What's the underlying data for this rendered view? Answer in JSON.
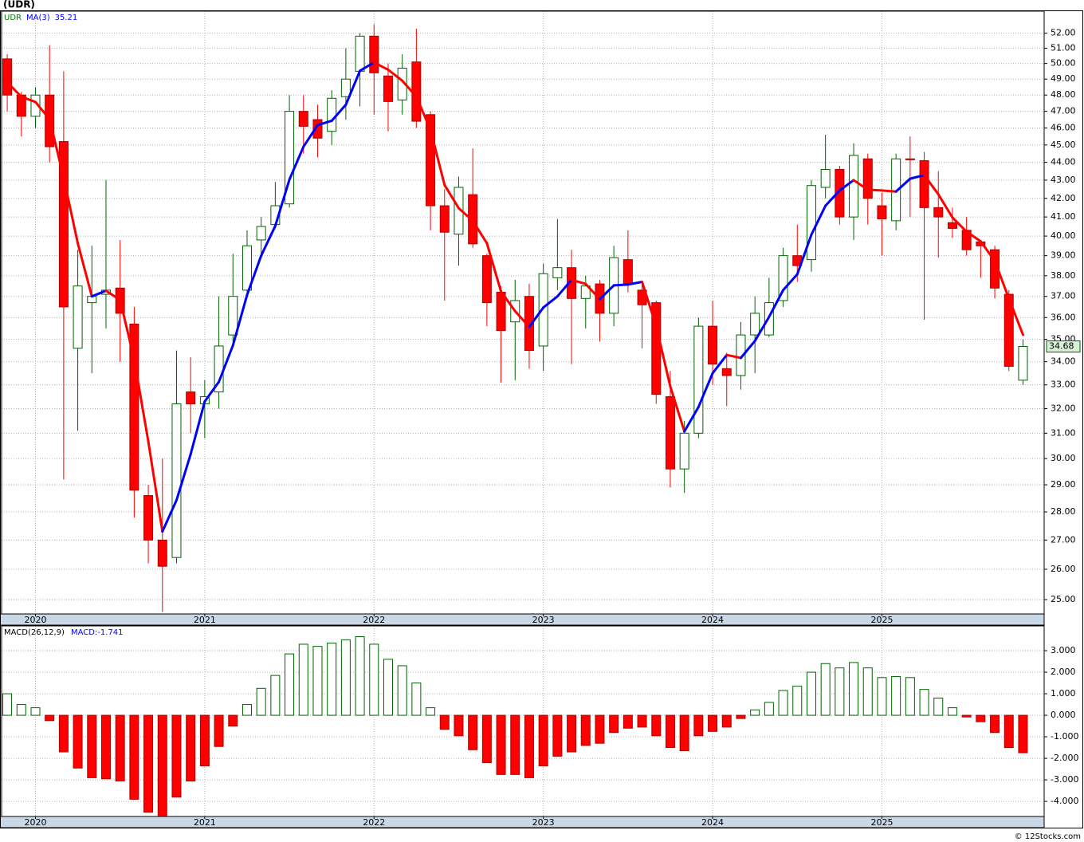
{
  "chart_data": [
    {
      "type": "candlestick",
      "title": "(UDR)",
      "ticker": "UDR",
      "ticker_color": "#008000",
      "log_scale": true,
      "grid": true,
      "up_color": "#006400",
      "down_color": "#ff0000",
      "open": [
        50.3,
        48.0,
        46.7,
        48.0,
        45.2,
        34.6,
        36.7,
        37.1,
        37.4,
        35.7,
        28.6,
        27.0,
        26.4,
        32.7,
        32.2,
        32.7,
        35.2,
        37.3,
        39.8,
        40.6,
        41.7,
        47.0,
        46.5,
        45.8,
        47.9,
        49.5,
        51.8,
        49.2,
        47.7,
        50.1,
        46.8,
        41.6,
        40.1,
        42.2,
        39.0,
        37.2,
        35.8,
        37.0,
        34.7,
        37.9,
        38.4,
        36.9,
        37.6,
        36.2,
        38.8,
        37.3,
        36.7,
        32.5,
        29.6,
        31.0,
        35.6,
        33.7,
        33.4,
        35.2,
        35.2,
        36.8,
        39.0,
        38.8,
        42.6,
        43.6,
        41.0,
        44.2,
        41.6,
        40.8,
        44.2,
        44.1,
        41.5,
        40.7,
        40.3,
        39.7,
        39.3,
        37.1,
        33.2
      ],
      "high": [
        50.6,
        48.2,
        48.5,
        51.2,
        49.5,
        39.3,
        39.5,
        43.0,
        39.8,
        36.5,
        29.0,
        30.0,
        34.5,
        34.2,
        33.2,
        37.0,
        39.1,
        40.3,
        41.0,
        42.9,
        48.0,
        48.0,
        47.4,
        48.3,
        51.0,
        52.0,
        52.6,
        50.0,
        50.6,
        52.3,
        47.0,
        42.5,
        43.2,
        44.8,
        39.1,
        37.5,
        37.8,
        37.6,
        38.6,
        40.9,
        39.3,
        38.0,
        37.8,
        39.5,
        40.3,
        37.6,
        36.8,
        33.6,
        31.5,
        36.0,
        36.8,
        34.4,
        35.8,
        37.0,
        37.9,
        39.4,
        40.6,
        43.0,
        45.6,
        43.8,
        45.1,
        44.5,
        42.3,
        44.5,
        45.5,
        44.6,
        43.5,
        41.5,
        41.0,
        39.8,
        39.5,
        37.3,
        35.0
      ],
      "low": [
        47.0,
        45.5,
        46.0,
        44.0,
        29.2,
        31.1,
        33.5,
        35.5,
        34.0,
        27.8,
        26.2,
        24.6,
        26.2,
        31.0,
        30.8,
        32.0,
        34.7,
        36.9,
        39.0,
        40.4,
        41.5,
        44.5,
        44.3,
        45.0,
        46.5,
        47.3,
        46.8,
        45.8,
        46.8,
        46.0,
        40.3,
        36.8,
        38.5,
        39.4,
        35.6,
        33.1,
        33.2,
        33.7,
        33.6,
        37.3,
        33.9,
        35.5,
        34.9,
        35.6,
        37.2,
        34.6,
        32.2,
        28.9,
        28.7,
        30.8,
        33.0,
        32.1,
        32.8,
        33.5,
        35.1,
        36.5,
        37.7,
        38.2,
        42.0,
        40.6,
        39.8,
        40.6,
        39.0,
        40.3,
        41.0,
        35.9,
        38.9,
        39.9,
        39.0,
        37.9,
        36.9,
        33.6,
        33.0
      ],
      "close": [
        48.0,
        46.7,
        48.0,
        44.9,
        36.5,
        37.5,
        37.0,
        37.3,
        36.2,
        28.8,
        27.0,
        26.1,
        32.2,
        32.2,
        32.5,
        34.7,
        37.0,
        39.5,
        40.5,
        41.6,
        47.0,
        46.1,
        45.4,
        47.8,
        49.0,
        51.8,
        49.4,
        47.6,
        49.7,
        46.4,
        41.6,
        40.2,
        42.6,
        39.6,
        36.7,
        35.4,
        36.8,
        34.5,
        38.1,
        38.4,
        36.9,
        37.5,
        36.2,
        38.9,
        37.6,
        36.6,
        32.6,
        29.6,
        31.0,
        35.6,
        33.9,
        33.4,
        35.2,
        36.2,
        36.7,
        39.0,
        38.5,
        42.7,
        43.6,
        41.0,
        44.4,
        42.0,
        40.9,
        44.2,
        44.15,
        41.5,
        41.0,
        40.4,
        39.3,
        39.5,
        37.4,
        33.8,
        34.68
      ],
      "ma": {
        "name": "MA(3)",
        "color": "#0000ff",
        "up_color": "#0000ff",
        "down_color": "#ff0000",
        "values": [
          48.8,
          47.9,
          47.57,
          46.53,
          43.13,
          39.63,
          37.0,
          37.27,
          36.83,
          34.1,
          30.67,
          27.3,
          28.43,
          30.17,
          32.3,
          33.13,
          34.73,
          37.07,
          39.0,
          40.53,
          43.03,
          44.9,
          46.17,
          46.43,
          47.4,
          49.53,
          50.07,
          49.6,
          48.9,
          47.9,
          45.9,
          42.73,
          41.47,
          40.8,
          39.63,
          37.23,
          36.3,
          35.57,
          36.47,
          37.0,
          37.8,
          37.6,
          36.87,
          37.53,
          37.57,
          37.7,
          35.6,
          32.93,
          31.07,
          32.07,
          33.5,
          34.3,
          34.17,
          34.93,
          36.03,
          37.3,
          38.07,
          40.07,
          41.6,
          42.43,
          43.0,
          42.47,
          42.43,
          42.37,
          43.08,
          43.28,
          42.22,
          40.97,
          40.23,
          39.73,
          38.73,
          36.9,
          35.21
        ]
      },
      "xlim": [
        -0.4,
        73.5
      ],
      "xticks": [
        {
          "value": 2,
          "label": "2020"
        },
        {
          "value": 14,
          "label": "2021"
        },
        {
          "value": 26,
          "label": "2022"
        },
        {
          "value": 38,
          "label": "2023"
        },
        {
          "value": 50,
          "label": "2024"
        },
        {
          "value": 62,
          "label": "2025"
        }
      ],
      "ylim": [
        24.54,
        53.5
      ],
      "yticks": [
        {
          "value": 25,
          "label": "25.00"
        },
        {
          "value": 26,
          "label": "26.00"
        },
        {
          "value": 27,
          "label": "27.00"
        },
        {
          "value": 28,
          "label": "28.00"
        },
        {
          "value": 29,
          "label": "29.00"
        },
        {
          "value": 30,
          "label": "30.00"
        },
        {
          "value": 31,
          "label": "31.00"
        },
        {
          "value": 32,
          "label": "32.00"
        },
        {
          "value": 33,
          "label": "33.00"
        },
        {
          "value": 34,
          "label": "34.00"
        },
        {
          "value": 35,
          "label": "35.00"
        },
        {
          "value": 36,
          "label": "36.00"
        },
        {
          "value": 37,
          "label": "37.00"
        },
        {
          "value": 38,
          "label": "38.00"
        },
        {
          "value": 39,
          "label": "39.00"
        },
        {
          "value": 40,
          "label": "40.00"
        },
        {
          "value": 41,
          "label": "41.00"
        },
        {
          "value": 42,
          "label": "42.00"
        },
        {
          "value": 43,
          "label": "43.00"
        },
        {
          "value": 44,
          "label": "44.00"
        },
        {
          "value": 45,
          "label": "45.00"
        },
        {
          "value": 46,
          "label": "46.00"
        },
        {
          "value": 47,
          "label": "47.00"
        },
        {
          "value": 48,
          "label": "48.00"
        },
        {
          "value": 49,
          "label": "49.00"
        },
        {
          "value": 50,
          "label": "50.00"
        },
        {
          "value": 51,
          "label": "51.00"
        },
        {
          "value": 52,
          "label": "52.00"
        }
      ]
    },
    {
      "type": "bar",
      "title": "MACD(26,12,9)",
      "macd_label": "MACD:-1.741",
      "label_color": "#0000ff",
      "grid": true,
      "up_color": "#006400",
      "down_color": "#ff0000",
      "values": [
        1.0,
        0.5,
        0.35,
        -0.25,
        -1.7,
        -2.45,
        -2.9,
        -2.95,
        -3.05,
        -3.9,
        -4.5,
        -4.7,
        -3.8,
        -3.05,
        -2.35,
        -1.45,
        -0.5,
        0.5,
        1.25,
        1.85,
        2.85,
        3.3,
        3.2,
        3.35,
        3.5,
        3.65,
        3.3,
        2.6,
        2.3,
        1.5,
        0.35,
        -0.65,
        -0.95,
        -1.6,
        -2.2,
        -2.75,
        -2.75,
        -2.9,
        -2.35,
        -1.9,
        -1.7,
        -1.4,
        -1.3,
        -0.8,
        -0.6,
        -0.55,
        -0.95,
        -1.5,
        -1.65,
        -0.95,
        -0.75,
        -0.55,
        -0.15,
        0.25,
        0.6,
        1.15,
        1.35,
        2.0,
        2.4,
        2.2,
        2.45,
        2.2,
        1.75,
        1.8,
        1.75,
        1.2,
        0.8,
        0.35,
        -0.08,
        -0.3,
        -0.8,
        -1.5,
        -1.741
      ],
      "xlim": [
        -0.4,
        73.5
      ],
      "xticks": [
        {
          "value": 2,
          "label": "2020"
        },
        {
          "value": 14,
          "label": "2021"
        },
        {
          "value": 26,
          "label": "2022"
        },
        {
          "value": 38,
          "label": "2023"
        },
        {
          "value": 50,
          "label": "2024"
        },
        {
          "value": 62,
          "label": "2025"
        }
      ],
      "ylim": [
        -4.7,
        4.15
      ],
      "yticks": [
        {
          "value": -4,
          "label": "-4.000"
        },
        {
          "value": -3,
          "label": "-3.000"
        },
        {
          "value": -2,
          "label": "-2.000"
        },
        {
          "value": -1,
          "label": "-1.000"
        },
        {
          "value": 0,
          "label": "0.000"
        },
        {
          "value": 1,
          "label": "1.000"
        },
        {
          "value": 2,
          "label": "2.000"
        },
        {
          "value": 3,
          "label": "3.000"
        }
      ]
    }
  ],
  "footer": "© 12Stocks.com"
}
